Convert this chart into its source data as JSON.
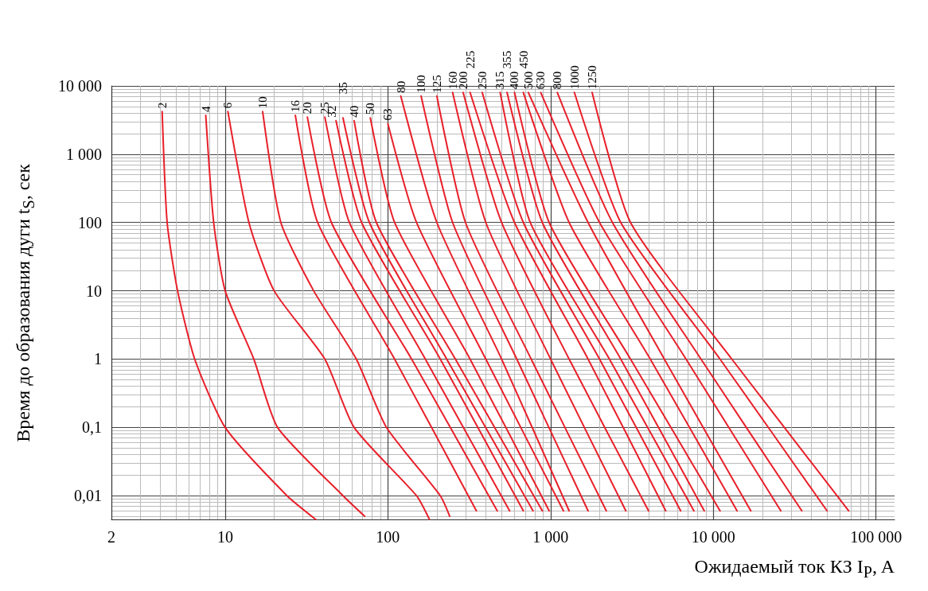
{
  "chart_data": {
    "type": "line",
    "xlabel": "Ожидаемый ток КЗ I$_{P}$, A",
    "ylabel": "Время до образования дуги t$_{S}$, сек",
    "log": "xy",
    "grid": true,
    "legend": false,
    "marker": "none",
    "line_style": "solid",
    "xlim": [
      2,
      130000
    ],
    "ylim": [
      0.0045,
      10000
    ],
    "xticks": [
      2,
      10,
      100,
      {
        "value": 1000,
        "label": "1 000"
      },
      {
        "value": 10000,
        "label": "10 000"
      },
      {
        "value": 100000,
        "label": "100 000"
      }
    ],
    "yticks": [
      {
        "value": 0.01,
        "label": "0,01"
      },
      {
        "value": 0.1,
        "label": "0,1"
      },
      1,
      10,
      100,
      {
        "value": 1000,
        "label": "1 000"
      },
      {
        "value": 10000,
        "label": "10 000"
      }
    ],
    "series": [
      {
        "name": "2",
        "color": "#e8202a",
        "x": [
          4.1,
          4.4,
          5.1,
          6.5,
          10,
          24,
          36
        ],
        "values": [
          4200,
          100,
          10,
          1,
          0.1,
          0.01,
          0.0045
        ]
      },
      {
        "name": "4",
        "color": "#e8202a",
        "x": [
          7.6,
          8.5,
          10,
          15,
          21,
          53,
          72
        ],
        "values": [
          3700,
          100,
          10,
          1,
          0.1,
          0.01,
          0.005
        ]
      },
      {
        "name": "6",
        "color": "#e8202a",
        "x": [
          10.4,
          14,
          20,
          41,
          62,
          150,
          180
        ],
        "values": [
          4200,
          100,
          10,
          1,
          0.1,
          0.01,
          0.0045
        ]
      },
      {
        "name": "10",
        "color": "#e8202a",
        "x": [
          17,
          22,
          35,
          64,
          98,
          210,
          240
        ],
        "values": [
          4200,
          100,
          10,
          1,
          0.1,
          0.01,
          0.005
        ]
      },
      {
        "name": "16",
        "color": "#e8202a",
        "x": [
          27,
          37,
          110,
          350
        ],
        "values": [
          3700,
          100,
          1,
          0.006
        ]
      },
      {
        "name": "20",
        "color": "#e8202a",
        "x": [
          32,
          45,
          140,
          470
        ],
        "values": [
          3500,
          100,
          1,
          0.006
        ]
      },
      {
        "name": "25",
        "color": "#e8202a",
        "x": [
          41,
          58,
          170,
          560
        ],
        "values": [
          3500,
          100,
          1,
          0.006
        ]
      },
      {
        "name": "32",
        "color": "#e8202a",
        "x": [
          48,
          69,
          210,
          680
        ],
        "values": [
          3100,
          100,
          1,
          0.006
        ]
      },
      {
        "name": "35",
        "color": "#e8202a",
        "x": [
          53,
          77,
          230,
          780
        ],
        "values": [
          3400,
          100,
          1,
          0.006
        ]
      },
      {
        "name": "40",
        "color": "#e8202a",
        "x": [
          62,
          85,
          260,
          890
        ],
        "values": [
          3100,
          100,
          1,
          0.006
        ]
      },
      {
        "name": "50",
        "color": "#e8202a",
        "x": [
          78,
          110,
          320,
          980
        ],
        "values": [
          3400,
          100,
          1,
          0.006
        ]
      },
      {
        "name": "63",
        "color": "#e8202a",
        "x": [
          100,
          150,
          400,
          1200
        ],
        "values": [
          2800,
          100,
          1,
          0.006
        ]
      },
      {
        "name": "80",
        "color": "#e8202a",
        "x": [
          120,
          200,
          500,
          1300
        ],
        "values": [
          7100,
          100,
          1,
          0.006
        ]
      },
      {
        "name": "100",
        "color": "#e8202a",
        "x": [
          160,
          250,
          620,
          1700
        ],
        "values": [
          7100,
          100,
          1,
          0.006
        ]
      },
      {
        "name": "125",
        "color": "#e8202a",
        "x": [
          200,
          300,
          760,
          2200
        ],
        "values": [
          7100,
          100,
          1,
          0.006
        ]
      },
      {
        "name": "160",
        "color": "#e8202a",
        "x": [
          250,
          400,
          1000,
          2900
        ],
        "values": [
          8000,
          100,
          1,
          0.006
        ]
      },
      {
        "name": "200",
        "color": "#e8202a",
        "x": [
          290,
          500,
          1300,
          4000
        ],
        "values": [
          8000,
          100,
          1,
          0.006
        ]
      },
      {
        "name": "225",
        "color": "#e8202a",
        "x": [
          320,
          600,
          1700,
          5100
        ],
        "values": [
          8000,
          100,
          1,
          0.006
        ]
      },
      {
        "name": "250",
        "color": "#e8202a",
        "x": [
          380,
          680,
          2000,
          6300
        ],
        "values": [
          8000,
          100,
          1,
          0.006
        ]
      },
      {
        "name": "315",
        "color": "#e8202a",
        "x": [
          490,
          750,
          2300,
          7600
        ],
        "values": [
          8000,
          100,
          1,
          0.006
        ]
      },
      {
        "name": "355",
        "color": "#e8202a",
        "x": [
          540,
          890,
          2700,
          8800
        ],
        "values": [
          8000,
          100,
          1,
          0.006
        ]
      },
      {
        "name": "400",
        "color": "#e8202a",
        "x": [
          600,
          980,
          3100,
          11000
        ],
        "values": [
          8000,
          100,
          1,
          0.006
        ]
      },
      {
        "name": "450",
        "color": "#e8202a",
        "x": [
          680,
          1300,
          4100,
          14000
        ],
        "values": [
          8000,
          100,
          1,
          0.006
        ]
      },
      {
        "name": "500",
        "color": "#e8202a",
        "x": [
          730,
          1700,
          5000,
          17000
        ],
        "values": [
          8000,
          100,
          1,
          0.006
        ]
      },
      {
        "name": "630",
        "color": "#e8202a",
        "x": [
          870,
          2000,
          6800,
          26000
        ],
        "values": [
          8000,
          100,
          1,
          0.006
        ]
      },
      {
        "name": "800",
        "color": "#e8202a",
        "x": [
          1100,
          2400,
          8400,
          35000
        ],
        "values": [
          8000,
          100,
          1,
          0.006
        ]
      },
      {
        "name": "1000",
        "color": "#e8202a",
        "x": [
          1400,
          2700,
          11000,
          50000
        ],
        "values": [
          8000,
          100,
          1,
          0.006
        ]
      },
      {
        "name": "1250",
        "color": "#e8202a",
        "x": [
          1800,
          3100,
          13000,
          68000
        ],
        "values": [
          8000,
          100,
          1,
          0.006
        ]
      }
    ]
  }
}
